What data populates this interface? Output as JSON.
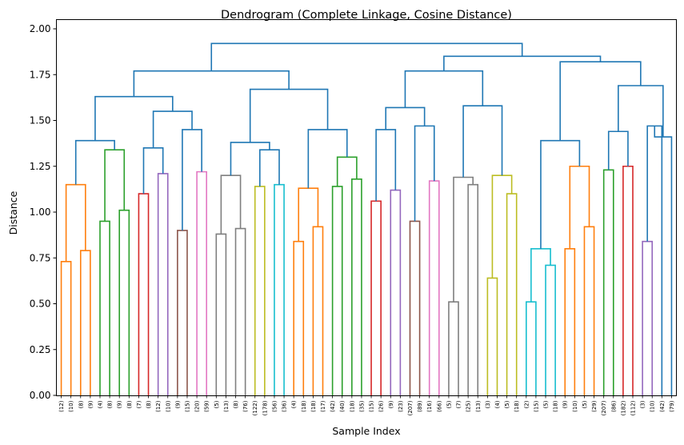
{
  "chart_data": {
    "type": "dendrogram",
    "title": "Dendrogram (Complete Linkage, Cosine Distance)",
    "xlabel": "Sample Index",
    "ylabel": "Distance",
    "ylim": [
      0,
      2.02
    ],
    "yticks": [
      "0.00",
      "0.25",
      "0.50",
      "0.75",
      "1.00",
      "1.25",
      "1.50",
      "1.75",
      "2.00"
    ],
    "grid": false,
    "leaves": [
      "(12)",
      "(10)",
      "(8)",
      "(9)",
      "(4)",
      "(8)",
      "(9)",
      "(8)",
      "(7)",
      "(8)",
      "(12)",
      "(10)",
      "(9)",
      "(15)",
      "(20)",
      "(59)",
      "(5)",
      "(13)",
      "(8)",
      "(76)",
      "(122)",
      "(178)",
      "(56)",
      "(36)",
      "(4)",
      "(18)",
      "(18)",
      "(17)",
      "(42)",
      "(40)",
      "(18)",
      "(35)",
      "(15)",
      "(26)",
      "(9)",
      "(23)",
      "(207)",
      "(89)",
      "(16)",
      "(66)",
      "(5)",
      "(7)",
      "(25)",
      "(13)",
      "(3)",
      "(4)",
      "(5)",
      "(18)",
      "(2)",
      "(15)",
      "(5)",
      "(18)",
      "(9)",
      "(10)",
      "(5)",
      "(29)",
      "(207)",
      "(86)",
      "(182)",
      "(112)",
      "(3)",
      "(10)",
      "(42)",
      "(79)"
    ],
    "colors": {
      "above_threshold": "#1f77b4",
      "C1": "#ff7f0e",
      "C2": "#2ca02c",
      "C3": "#d62728",
      "C4": "#9467bd",
      "C5": "#8c564b",
      "C6": "#e377c2",
      "C7": "#7f7f7f",
      "C8": "#bcbd22",
      "C9": "#17becf"
    },
    "links": [
      {
        "left": 0,
        "right": 1,
        "height": 0.73,
        "color": "C1"
      },
      {
        "left": 2,
        "right": 3,
        "height": 0.79,
        "color": "C1"
      },
      {
        "left": 0.5,
        "right": 2.5,
        "height": 1.15,
        "color": "C1"
      },
      {
        "left": 4,
        "right": 5,
        "height": 0.95,
        "color": "C2"
      },
      {
        "left": 6,
        "right": 7,
        "height": 1.01,
        "color": "C2"
      },
      {
        "left": 4.5,
        "right": 6.5,
        "height": 1.34,
        "color": "C2"
      },
      {
        "left": 1.5,
        "right": 5.5,
        "height": 1.39,
        "color": "above_threshold"
      },
      {
        "left": 8,
        "right": 9,
        "height": 1.1,
        "color": "C3"
      },
      {
        "left": 10,
        "right": 11,
        "height": 1.21,
        "color": "C4"
      },
      {
        "left": 8.5,
        "right": 10.5,
        "height": 1.35,
        "color": "above_threshold"
      },
      {
        "left": 12,
        "right": 13,
        "height": 0.9,
        "color": "C5"
      },
      {
        "left": 14,
        "right": 15,
        "height": 1.22,
        "color": "C6"
      },
      {
        "left": 12.5,
        "right": 14.5,
        "height": 1.45,
        "color": "above_threshold"
      },
      {
        "left": 9.5,
        "right": 13.5,
        "height": 1.55,
        "color": "above_threshold"
      },
      {
        "left": 3.5,
        "right": 11.5,
        "height": 1.63,
        "color": "above_threshold"
      },
      {
        "left": 16,
        "right": 17,
        "height": 0.88,
        "color": "C7"
      },
      {
        "left": 18,
        "right": 19,
        "height": 0.91,
        "color": "C7"
      },
      {
        "left": 16.5,
        "right": 18.5,
        "height": 1.2,
        "color": "C7"
      },
      {
        "left": 20,
        "right": 21,
        "height": 1.14,
        "color": "C8"
      },
      {
        "left": 22,
        "right": 23,
        "height": 1.15,
        "color": "C9"
      },
      {
        "left": 20.5,
        "right": 22.5,
        "height": 1.34,
        "color": "above_threshold"
      },
      {
        "left": 17.5,
        "right": 21.5,
        "height": 1.38,
        "color": "above_threshold"
      },
      {
        "left": 24,
        "right": 25,
        "height": 0.84,
        "color": "C1"
      },
      {
        "left": 26,
        "right": 27,
        "height": 0.92,
        "color": "C1"
      },
      {
        "left": 24.5,
        "right": 26.5,
        "height": 1.13,
        "color": "C1"
      },
      {
        "left": 28,
        "right": 29,
        "height": 1.14,
        "color": "C2"
      },
      {
        "left": 30,
        "right": 31,
        "height": 1.18,
        "color": "C2"
      },
      {
        "left": 28.5,
        "right": 30.5,
        "height": 1.3,
        "color": "C2"
      },
      {
        "left": 25.5,
        "right": 29.5,
        "height": 1.45,
        "color": "above_threshold"
      },
      {
        "left": 19.5,
        "right": 27.5,
        "height": 1.67,
        "color": "above_threshold"
      },
      {
        "left": 7.5,
        "right": 23.5,
        "height": 1.77,
        "color": "above_threshold"
      },
      {
        "left": 32,
        "right": 33,
        "height": 1.06,
        "color": "C3"
      },
      {
        "left": 34,
        "right": 35,
        "height": 1.12,
        "color": "C4"
      },
      {
        "left": 32.5,
        "right": 34.5,
        "height": 1.45,
        "color": "above_threshold"
      },
      {
        "left": 36,
        "right": 37,
        "height": 0.95,
        "color": "C5"
      },
      {
        "left": 38,
        "right": 39,
        "height": 1.17,
        "color": "C6"
      },
      {
        "left": 36.5,
        "right": 38.5,
        "height": 1.47,
        "color": "above_threshold"
      },
      {
        "left": 33.5,
        "right": 37.5,
        "height": 1.57,
        "color": "above_threshold"
      },
      {
        "left": 40,
        "right": 41,
        "height": 0.51,
        "color": "C7"
      },
      {
        "left": 42,
        "right": 43,
        "height": 1.15,
        "color": "C7"
      },
      {
        "left": 40.5,
        "right": 42.5,
        "height": 1.19,
        "color": "C7"
      },
      {
        "left": 44,
        "right": 45,
        "height": 0.64,
        "color": "C8"
      },
      {
        "left": 46,
        "right": 47,
        "height": 1.1,
        "color": "C8"
      },
      {
        "left": 44.5,
        "right": 46.5,
        "height": 1.2,
        "color": "C8"
      },
      {
        "left": 41.5,
        "right": 45.5,
        "height": 1.58,
        "color": "above_threshold"
      },
      {
        "left": 35.5,
        "right": 43.5,
        "height": 1.77,
        "color": "above_threshold"
      },
      {
        "left": 48,
        "right": 49,
        "height": 0.51,
        "color": "C9"
      },
      {
        "left": 50,
        "right": 51,
        "height": 0.71,
        "color": "C9"
      },
      {
        "left": 48.5,
        "right": 50.5,
        "height": 0.8,
        "color": "C9"
      },
      {
        "left": 52,
        "right": 53,
        "height": 0.8,
        "color": "C1"
      },
      {
        "left": 54,
        "right": 55,
        "height": 0.92,
        "color": "C1"
      },
      {
        "left": 52.5,
        "right": 54.5,
        "height": 1.25,
        "color": "C1"
      },
      {
        "left": 49.5,
        "right": 53.5,
        "height": 1.39,
        "color": "above_threshold"
      },
      {
        "left": 56,
        "right": 57,
        "height": 1.23,
        "color": "C2"
      },
      {
        "left": 58,
        "right": 59,
        "height": 1.25,
        "color": "C3"
      },
      {
        "left": 56.5,
        "right": 58.5,
        "height": 1.44,
        "color": "above_threshold"
      },
      {
        "left": 60,
        "right": 61,
        "height": 0.84,
        "color": "C4"
      },
      {
        "left": 60.5,
        "right": 62,
        "height": 1.47,
        "color": "above_threshold"
      },
      {
        "left": 61.25,
        "right": 63,
        "height": 1.41,
        "color": "above_threshold"
      },
      {
        "left": 57.5,
        "right": 62.125,
        "height": 1.69,
        "color": "above_threshold"
      },
      {
        "left": 51.5,
        "right": 59.8125,
        "height": 1.82,
        "color": "above_threshold"
      },
      {
        "left": 39.5,
        "right": 55.65625,
        "height": 1.85,
        "color": "above_threshold"
      },
      {
        "left": 15.5,
        "right": 47.578125,
        "height": 1.92,
        "color": "above_threshold"
      }
    ]
  }
}
